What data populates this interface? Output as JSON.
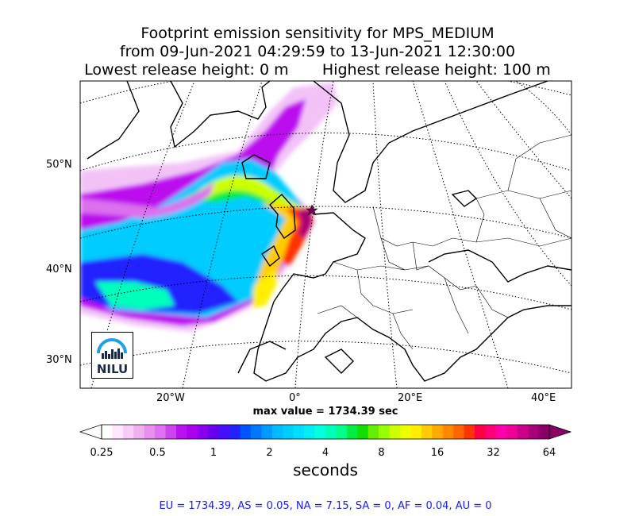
{
  "title": {
    "line1": "Footprint emission sensitivity for MPS_MEDIUM",
    "line2": "from 09-Jun-2021 04:29:59 to 13-Jun-2021 12:30:00",
    "line3_left": "Lowest release height: 0 m",
    "line3_right": "Highest release height: 100 m"
  },
  "axes": {
    "lat_labels": [
      "50°N",
      "40°N",
      "30°N"
    ],
    "lon_labels": [
      "20°W",
      "0°",
      "20°E",
      "40°E"
    ]
  },
  "max_value_text": "max value = 1734.39 sec",
  "colorbar": {
    "ticks": [
      "0.25",
      "0.5",
      "1",
      "2",
      "4",
      "8",
      "16",
      "32",
      "64"
    ],
    "units": "seconds",
    "colors": [
      "#ffffff",
      "#ffe6ff",
      "#f8ccf8",
      "#f0b0f0",
      "#e890f0",
      "#dd70ee",
      "#cc44ee",
      "#bb11ee",
      "#aa00ee",
      "#8800ee",
      "#6600ee",
      "#4411ff",
      "#2222ff",
      "#0055ff",
      "#0077ff",
      "#0099ff",
      "#00bbff",
      "#00ccff",
      "#00ddff",
      "#00eeee",
      "#00ffdd",
      "#00ffbb",
      "#00ff88",
      "#00ee44",
      "#11dd00",
      "#66ee00",
      "#99ff00",
      "#ccff00",
      "#eeff00",
      "#ffee00",
      "#ffcc00",
      "#ffaa00",
      "#ff8800",
      "#ff6600",
      "#ff3300",
      "#ff0044",
      "#ff0077",
      "#ff00aa",
      "#ee0099",
      "#cc0088",
      "#aa0077",
      "#880066"
    ]
  },
  "logo": {
    "text": "NILU"
  },
  "stats_text": "EU = 1734.39,  AS = 0.05,  NA = 7.15,  SA = 0,  AF = 0.04,  AU = 0"
}
